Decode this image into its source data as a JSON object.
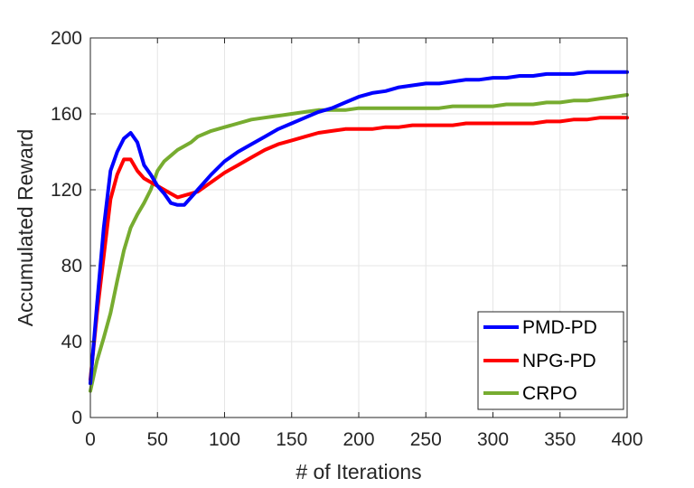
{
  "chart_data": {
    "type": "line",
    "xlabel": "# of Iterations",
    "ylabel": "Accumulated Reward",
    "xlim": [
      0,
      400
    ],
    "ylim": [
      0,
      200
    ],
    "xticks": [
      0,
      50,
      100,
      150,
      200,
      250,
      300,
      350,
      400
    ],
    "yticks": [
      0,
      40,
      80,
      120,
      160,
      200
    ],
    "grid": true,
    "legend_position": "bottom-right",
    "series": [
      {
        "name": "PMD-PD",
        "color": "#0000ff",
        "x": [
          0,
          5,
          10,
          15,
          20,
          25,
          30,
          35,
          40,
          45,
          50,
          55,
          60,
          65,
          70,
          75,
          80,
          90,
          100,
          110,
          120,
          130,
          140,
          150,
          160,
          170,
          180,
          190,
          200,
          210,
          220,
          230,
          240,
          250,
          260,
          270,
          280,
          290,
          300,
          310,
          320,
          330,
          340,
          350,
          360,
          370,
          380,
          390,
          400
        ],
        "y": [
          18,
          60,
          100,
          130,
          140,
          147,
          150,
          145,
          133,
          128,
          122,
          118,
          113,
          112,
          112,
          116,
          120,
          128,
          135,
          140,
          144,
          148,
          152,
          155,
          158,
          161,
          163,
          166,
          169,
          171,
          172,
          174,
          175,
          176,
          176,
          177,
          178,
          178,
          179,
          179,
          180,
          180,
          181,
          181,
          181,
          182,
          182,
          182,
          182
        ]
      },
      {
        "name": "NPG-PD",
        "color": "#ff0000",
        "x": [
          0,
          5,
          10,
          15,
          20,
          25,
          30,
          35,
          40,
          45,
          50,
          55,
          60,
          65,
          70,
          75,
          80,
          90,
          100,
          110,
          120,
          130,
          140,
          150,
          160,
          170,
          180,
          190,
          200,
          210,
          220,
          230,
          240,
          250,
          260,
          270,
          280,
          290,
          300,
          310,
          320,
          330,
          340,
          350,
          360,
          370,
          380,
          390,
          400
        ],
        "y": [
          20,
          55,
          85,
          115,
          128,
          136,
          136,
          130,
          126,
          124,
          122,
          120,
          118,
          116,
          117,
          118,
          119,
          124,
          129,
          133,
          137,
          141,
          144,
          146,
          148,
          150,
          151,
          152,
          152,
          152,
          153,
          153,
          154,
          154,
          154,
          154,
          155,
          155,
          155,
          155,
          155,
          155,
          156,
          156,
          157,
          157,
          158,
          158,
          158
        ]
      },
      {
        "name": "CRPO",
        "color": "#77ac30",
        "x": [
          0,
          5,
          10,
          15,
          20,
          25,
          30,
          35,
          40,
          45,
          50,
          55,
          60,
          65,
          70,
          75,
          80,
          90,
          100,
          110,
          120,
          130,
          140,
          150,
          160,
          170,
          180,
          190,
          200,
          210,
          220,
          230,
          240,
          250,
          260,
          270,
          280,
          290,
          300,
          310,
          320,
          330,
          340,
          350,
          360,
          370,
          380,
          390,
          400
        ],
        "y": [
          14,
          30,
          42,
          55,
          72,
          88,
          100,
          107,
          113,
          120,
          130,
          135,
          138,
          141,
          143,
          145,
          148,
          151,
          153,
          155,
          157,
          158,
          159,
          160,
          161,
          162,
          162,
          162,
          163,
          163,
          163,
          163,
          163,
          163,
          163,
          164,
          164,
          164,
          164,
          165,
          165,
          165,
          166,
          166,
          167,
          167,
          168,
          169,
          170
        ]
      }
    ]
  }
}
